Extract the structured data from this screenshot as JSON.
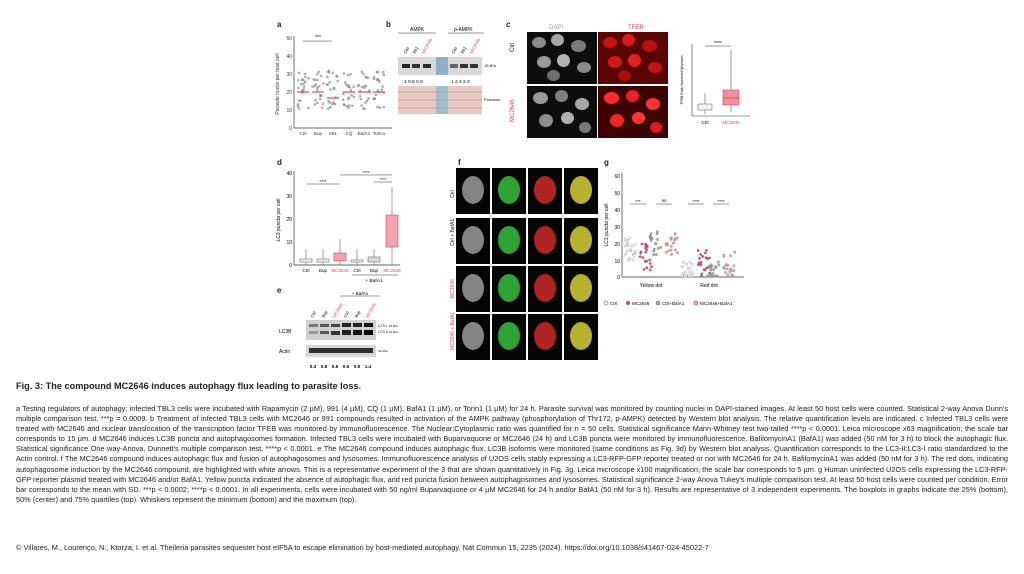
{
  "figure": {
    "title": "Fig. 3: The compound MC2646 induces autophagy flux leading to parasite loss.",
    "caption": "a Testing regulators of autophagy: infected TBL3 cells were incubated with Rapamycin (2 µM), 991 (4 µM), CQ (1 µM), BafA1 (1 µM), or Torin1 (1 µM) for 24 h. Parasite survival was monitored by counting nuclei in DAPI-stained images. At least 50 host cells were counted. Statistical 2-way Anova Dunn's multiple comparison test. ***p = 0.0009. b Treatment of infected TBL3 cells with MC2646 or 991 compounds resulted in activation of the AMPK pathway (phosphorylation of Thr172, p-AMPK) detected by Western blot analysis. The relative quantification levels are indicated. c Infected TBL3 cells were treated with MC2646 and nuclear translocation of the transcription factor TFEB was monitored by immunofluorescence. The Nuclear:Cytoplasmic ratio was quantified for n = 50 cells. Statistical significance Mann-Whitney test two-tailed ****p < 0.0001. Leica microscope x63 magnification; the scale bar corresponds to 15 µm. d MC2646 induces LC3B puncta and autophagosomes formation. Infected TBL3 cells were incubated with Buparvaquone or MC2646 (24 h) and LC3B puncta were monitored by immunofluorescence. BafilomycinA1 (BafA1) was added (50 nM for 3 h) to block the autophagic flux. Statistical significance One way-Anova, Dunnett's multiple comparison test, ****p < 0.0001. e The MC2646 compound induces autophagic flux. LC3B isoforms were monitored (same conditions as Fig. 3d) by Western blot analysis. Quantification corresponds to the LC3-II:LC3-I ratio standardized to the Actin control. f The MC2646 compound induces autophagic flux and fusion of autophagosomes and lysosomes. Immunofluorescence analysis of U2OS cells stably expressing a LC3-RFP-GFP reporter treated or not with MC2646 for 24 h. BafilomycinA1 was added (50 nM for 3 h). The red dots, indicating autophagosome induction by the MC2646 compound, are highlighted with white arrows. This is a representative experiment of the 3 that are shown quantitatively in Fig. 3g. Leica microscope x100 magnification; the scale bar corresponds to 5 µm. g Human uninfected U2OS cells expressing the LC3-RFP-GFP reporter plasmid treated with MC2646 and/or BafA1. Yellow puncta indicated the absence of autophagic flux, and red puncta fusion between autophagosomes and lysosomes. Statistical significance 2-way Anova Tukey's multiple comparison test. At least 50 host cells were counted per condition. Error bar corresponds to the mean with SD. ***p < 0.0002; ****p < 0.0001. In all experiments, cells were incubated with 50 ng/ml Buparvaquone or 4 µM MC2646 for 24 h and/or BafA1 (50 nM for 3 h). Results are representative of 3 independent experiments. The boxplots in graphs indicate the 25% (bottom), 50% (center) and 75% quartiles (top). Whiskers represent the minimum (bottom) and the maximum (top).",
    "citation": "© Villares, M., Lourenço, N., Ktorza, I. et al. Theileria parasites sequester host eIF5A to escape elimination by host-mediated autophagy. Nat Commun 15, 2235 (2024). https://doi.org/10.1038/s41467-024-45022-7"
  },
  "colors": {
    "accent": "#e0455b",
    "pink_box": "#f2a3ad",
    "gray_box": "#d9d9d9"
  },
  "panels": {
    "a": {
      "letter": "a",
      "ylabel": "Parasite nuclei per host cell",
      "yticks": [
        "0",
        "10",
        "20",
        "30",
        "40",
        "50"
      ],
      "sig": "***",
      "categories": [
        "Ctrl",
        "Bup",
        "991",
        "CQ",
        "BafA1",
        "Torin1"
      ]
    },
    "b": {
      "letter": "b",
      "group1": "AMPK",
      "group2": "p-AMPK",
      "lanes": [
        "Ctrl",
        "991",
        "MC2646",
        "Ctrl",
        "991",
        "MC2646"
      ],
      "quant1": "1  0.8  0.9",
      "quant2": "1  2.4 2.3",
      "kda": "60 kDa",
      "ponceau": "Ponceau"
    },
    "c": {
      "letter": "c",
      "col1": "DAPI",
      "col2": "TFEB",
      "row1": "Ctrl",
      "row2": "MC2646",
      "ylabel": "TFEB Ratio Nucleus/Cytoplasm",
      "sig": "****",
      "categories": [
        "Ctrl",
        "MC2646"
      ]
    },
    "d": {
      "letter": "d",
      "ylabel": "LC3 puncta per cell",
      "yticks": [
        "0",
        "10",
        "20",
        "30",
        "40"
      ],
      "sig1": "****",
      "sig2": "****",
      "sig3": "****",
      "categories": [
        "Ctrl",
        "Bup",
        "MC2646",
        "Ctrl",
        "Bup",
        "MC2646"
      ],
      "bafa1": "+ BafA1"
    },
    "e": {
      "letter": "e",
      "bafa1": "+ BafA1",
      "lanes": [
        "Ctrl",
        "Bup",
        "MC2646",
        "Ctrl",
        "Bup",
        "MC2646"
      ],
      "lc3b": "LC3B",
      "lc3i": "LC3-I",
      "lc3ii": "LC3-II",
      "kda1": "18 kDa",
      "kda2": "16 kDa",
      "actin": "Actin",
      "kda3": "40 kDa",
      "quant": [
        "0.3",
        "0.8",
        "0.8",
        "0.6",
        "0.9",
        "1.4"
      ]
    },
    "f": {
      "letter": "f",
      "rows": [
        "Ctrl",
        "Ctrl + BafA1",
        "MC2646",
        "MC2646 + BafA1"
      ]
    },
    "g": {
      "letter": "g",
      "ylabel": "LC3 puncta per cell",
      "yticks": [
        "0",
        "10",
        "20",
        "30",
        "40",
        "50",
        "60"
      ],
      "sig": [
        "***",
        "ns",
        "****",
        "****"
      ],
      "groups": [
        "Yellow dot",
        "Red dot"
      ],
      "legend": [
        "Ctrl",
        "MC2646",
        "Ctrl+BafA1",
        "MC2646+BafA1"
      ]
    }
  }
}
